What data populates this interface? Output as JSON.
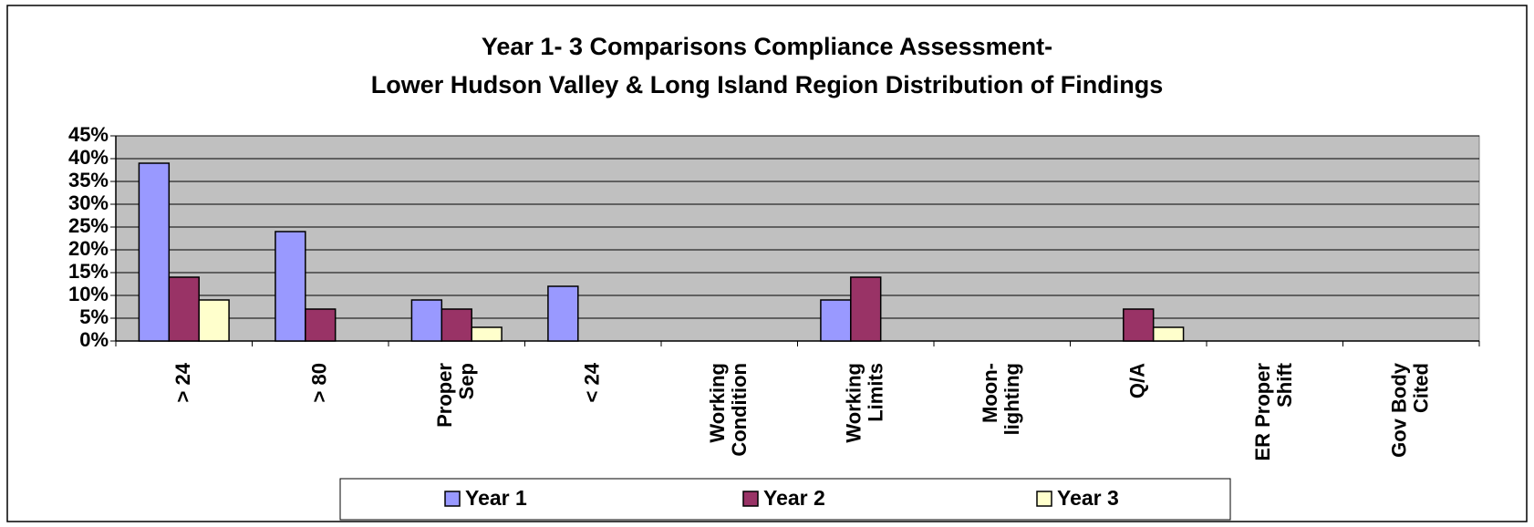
{
  "chart_data": {
    "type": "bar",
    "title": "Year 1- 3 Comparisons Compliance Assessment-",
    "subtitle": "Lower Hudson Valley & Long Island Region Distribution of Findings",
    "categories": [
      "> 24",
      "> 80",
      "Proper\nSep",
      "< 24",
      "Working\nCondition",
      "Working\nLimits",
      "Moon-\nlighting",
      "Q/A",
      "ER Proper\nShift",
      "Gov Body\nCited"
    ],
    "series": [
      {
        "name": "Year 1",
        "color": "#9999ff",
        "values": [
          39,
          24,
          9,
          12,
          0,
          9,
          0,
          0,
          0,
          0
        ]
      },
      {
        "name": "Year 2",
        "color": "#993366",
        "values": [
          14,
          7,
          7,
          0,
          0,
          14,
          0,
          7,
          0,
          0
        ]
      },
      {
        "name": "Year 3",
        "color": "#ffffcc",
        "values": [
          9,
          0,
          3,
          0,
          0,
          0,
          0,
          3,
          0,
          0
        ]
      }
    ],
    "ylim": [
      0,
      45
    ],
    "yticks": [
      {
        "value": 0,
        "label": "0%"
      },
      {
        "value": 5,
        "label": "5%"
      },
      {
        "value": 10,
        "label": "10%"
      },
      {
        "value": 15,
        "label": "15%"
      },
      {
        "value": 20,
        "label": "20%"
      },
      {
        "value": 25,
        "label": "25%"
      },
      {
        "value": 30,
        "label": "30%"
      },
      {
        "value": 35,
        "label": "35%"
      },
      {
        "value": 40,
        "label": "40%"
      },
      {
        "value": 45,
        "label": "45%"
      }
    ],
    "grid": true,
    "legend": "bottom"
  }
}
